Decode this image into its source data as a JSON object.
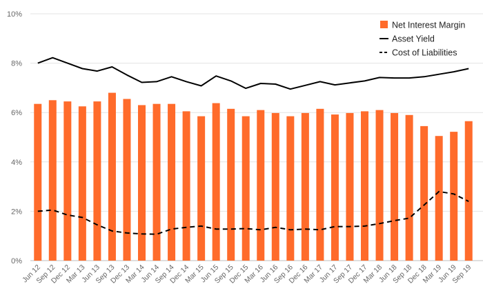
{
  "chart_data": {
    "type": "bar",
    "title": "",
    "xlabel": "",
    "ylabel": "",
    "ylim": [
      0,
      10
    ],
    "y_ticks": [
      "0%",
      "2%",
      "4%",
      "6%",
      "8%",
      "10%"
    ],
    "y_tick_values": [
      0,
      2,
      4,
      6,
      8,
      10
    ],
    "grid": true,
    "legend_position": "top-right",
    "categories": [
      "Jun 12",
      "Sep 12",
      "Dec 12",
      "Mar 13",
      "Jun 13",
      "Sep 13",
      "Dec 13",
      "Mar 14",
      "Jun 14",
      "Sep 14",
      "Dec 14",
      "Mar 15",
      "Jun 15",
      "Sep 15",
      "Dec 15",
      "Mar 16",
      "Jun 16",
      "Sep 16",
      "Dec 16",
      "Mar 17",
      "Jun 17",
      "Sep 17",
      "Dec 17",
      "Mar 18",
      "Jun 18",
      "Sep 18",
      "Dec 18",
      "Mar 19",
      "Jun 19",
      "Sep 19"
    ],
    "series": [
      {
        "name": "Net Interest Margin",
        "kind": "bar",
        "color": "#ff6b2b",
        "values": [
          6.35,
          6.5,
          6.45,
          6.25,
          6.45,
          6.8,
          6.55,
          6.3,
          6.35,
          6.35,
          6.05,
          5.85,
          6.38,
          6.15,
          5.85,
          6.1,
          5.98,
          5.85,
          5.98,
          6.15,
          5.92,
          5.98,
          6.05,
          6.1,
          5.98,
          5.9,
          5.45,
          5.05,
          5.22,
          5.65
        ]
      },
      {
        "name": "Asset Yield",
        "kind": "line",
        "style": "solid",
        "color": "#000000",
        "values": [
          8.0,
          8.22,
          8.0,
          7.78,
          7.68,
          7.85,
          7.52,
          7.22,
          7.25,
          7.45,
          7.25,
          7.08,
          7.48,
          7.28,
          6.98,
          7.18,
          7.15,
          6.95,
          7.1,
          7.25,
          7.12,
          7.2,
          7.28,
          7.42,
          7.4,
          7.4,
          7.45,
          7.55,
          7.65,
          7.78
        ]
      },
      {
        "name": "Cost of Liabilities",
        "kind": "line",
        "style": "dashed",
        "color": "#000000",
        "values": [
          2.0,
          2.05,
          1.85,
          1.75,
          1.45,
          1.2,
          1.12,
          1.08,
          1.07,
          1.28,
          1.35,
          1.4,
          1.28,
          1.28,
          1.3,
          1.25,
          1.35,
          1.25,
          1.28,
          1.25,
          1.38,
          1.38,
          1.4,
          1.5,
          1.62,
          1.72,
          2.25,
          2.8,
          2.7,
          2.4
        ]
      }
    ]
  }
}
